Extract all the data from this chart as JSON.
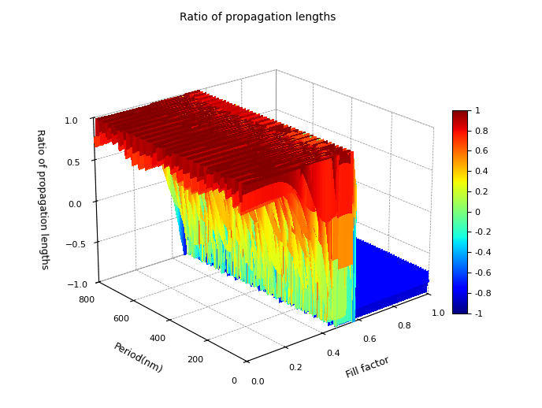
{
  "title": "Ratio of propagation lengths",
  "xlabel": "Fill factor",
  "ylabel": "Period(nm)",
  "zlabel": "Ratio of propagation lengths",
  "period_min": 0,
  "period_max": 800,
  "fill_min": 0.0,
  "fill_max": 1.0,
  "zlim": [
    -1,
    1
  ],
  "colormap": "jet",
  "background_color": "#ffffff",
  "elev": 22,
  "azim": -130,
  "figsize": [
    6.88,
    5.18
  ],
  "dpi": 100,
  "fill_steps": 300,
  "period_steps": 400,
  "xticks": [
    0,
    0.2,
    0.4,
    0.6,
    0.8,
    1.0
  ],
  "yticks": [
    0,
    200,
    400,
    600,
    800
  ],
  "zticks": [
    -1,
    -0.5,
    0,
    0.5,
    1
  ],
  "colorbar_ticks": [
    -1,
    -0.8,
    -0.6,
    -0.4,
    -0.2,
    0,
    0.2,
    0.4,
    0.6,
    0.8,
    1
  ]
}
